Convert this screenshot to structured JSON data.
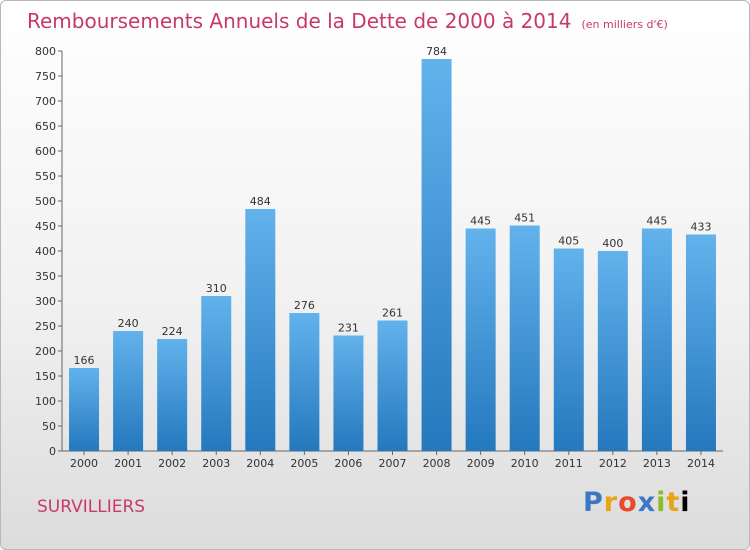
{
  "title": "Remboursements Annuels de la Dette de 2000 à 2014",
  "subtitle": "(en milliers d'€)",
  "town": "SURVILLIERS",
  "logo": "Proxiti",
  "colors": {
    "title": "#c83a66",
    "bar_light": "#62b2ec",
    "bar_dark": "#2478bd"
  },
  "chart_data": {
    "type": "bar",
    "title": "Remboursements Annuels de la Dette de 2000 à 2014",
    "subtitle": "(en milliers d'€)",
    "xlabel": "",
    "ylabel": "",
    "categories": [
      "2000",
      "2001",
      "2002",
      "2003",
      "2004",
      "2005",
      "2006",
      "2007",
      "2008",
      "2009",
      "2010",
      "2011",
      "2012",
      "2013",
      "2014"
    ],
    "values": [
      166,
      240,
      224,
      310,
      484,
      276,
      231,
      261,
      784,
      445,
      451,
      405,
      400,
      445,
      433
    ],
    "ylim": [
      0,
      800
    ],
    "yticks": [
      0,
      50,
      100,
      150,
      200,
      250,
      300,
      350,
      400,
      450,
      500,
      550,
      600,
      650,
      700,
      750,
      800
    ],
    "grid": false,
    "legend": "none"
  }
}
